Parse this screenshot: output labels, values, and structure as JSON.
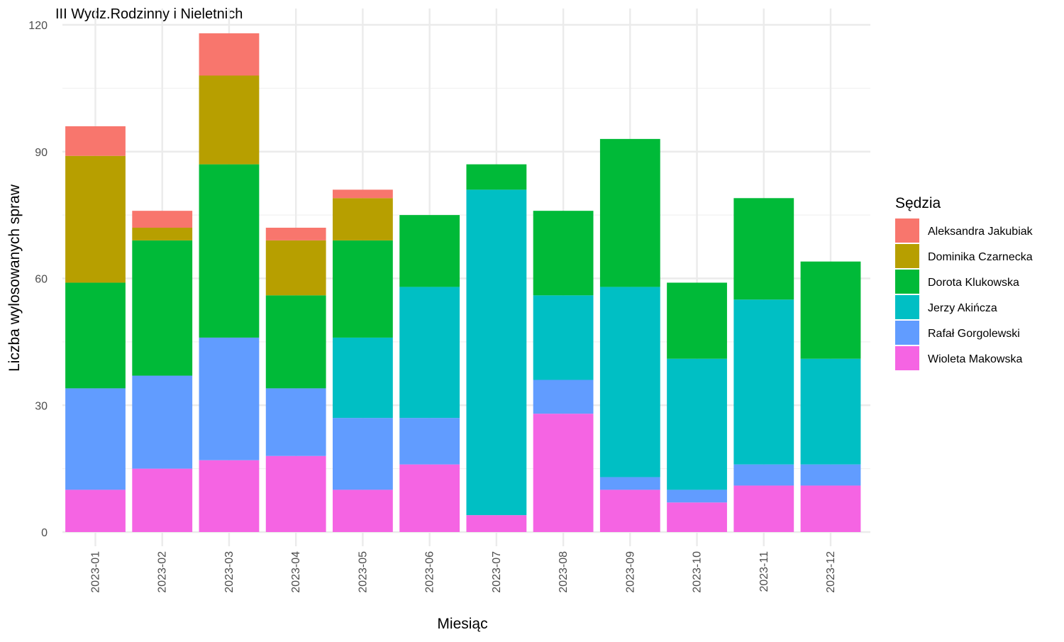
{
  "chart_data": {
    "type": "bar",
    "stacked": true,
    "title": "III Wydz.Rodzinny i Nieletnich",
    "xlabel": "Miesiąc",
    "ylabel": "Liczba wylosowanych spraw",
    "ylim": [
      0,
      120
    ],
    "yticks": [
      0,
      30,
      60,
      90,
      120
    ],
    "grid": true,
    "legend": {
      "title": "Sędzia",
      "position": "right"
    },
    "categories": [
      "2023-01",
      "2023-02",
      "2023-03",
      "2023-04",
      "2023-05",
      "2023-06",
      "2023-07",
      "2023-08",
      "2023-09",
      "2023-10",
      "2023-11",
      "2023-12"
    ],
    "series": [
      {
        "name": "Wioleta Makowska",
        "color": "#F564E3",
        "values": [
          10,
          15,
          17,
          18,
          10,
          16,
          4,
          28,
          10,
          7,
          11,
          11
        ]
      },
      {
        "name": "Rafał Gorgolewski",
        "color": "#619CFF",
        "values": [
          24,
          22,
          29,
          16,
          17,
          11,
          0,
          8,
          3,
          3,
          5,
          5
        ]
      },
      {
        "name": "Jerzy Akińcza",
        "color": "#00BFC4",
        "values": [
          0,
          0,
          0,
          0,
          19,
          31,
          77,
          20,
          45,
          31,
          39,
          25
        ]
      },
      {
        "name": "Dorota Klukowska",
        "color": "#00BA38",
        "values": [
          25,
          32,
          41,
          22,
          23,
          17,
          6,
          20,
          35,
          18,
          24,
          23
        ]
      },
      {
        "name": "Dominika Czarnecka",
        "color": "#B79F00",
        "values": [
          30,
          3,
          21,
          13,
          10,
          0,
          0,
          0,
          0,
          0,
          0,
          0
        ]
      },
      {
        "name": "Aleksandra Jakubiak",
        "color": "#F8766D",
        "values": [
          7,
          4,
          10,
          3,
          2,
          0,
          0,
          0,
          0,
          0,
          0,
          0
        ]
      }
    ]
  }
}
